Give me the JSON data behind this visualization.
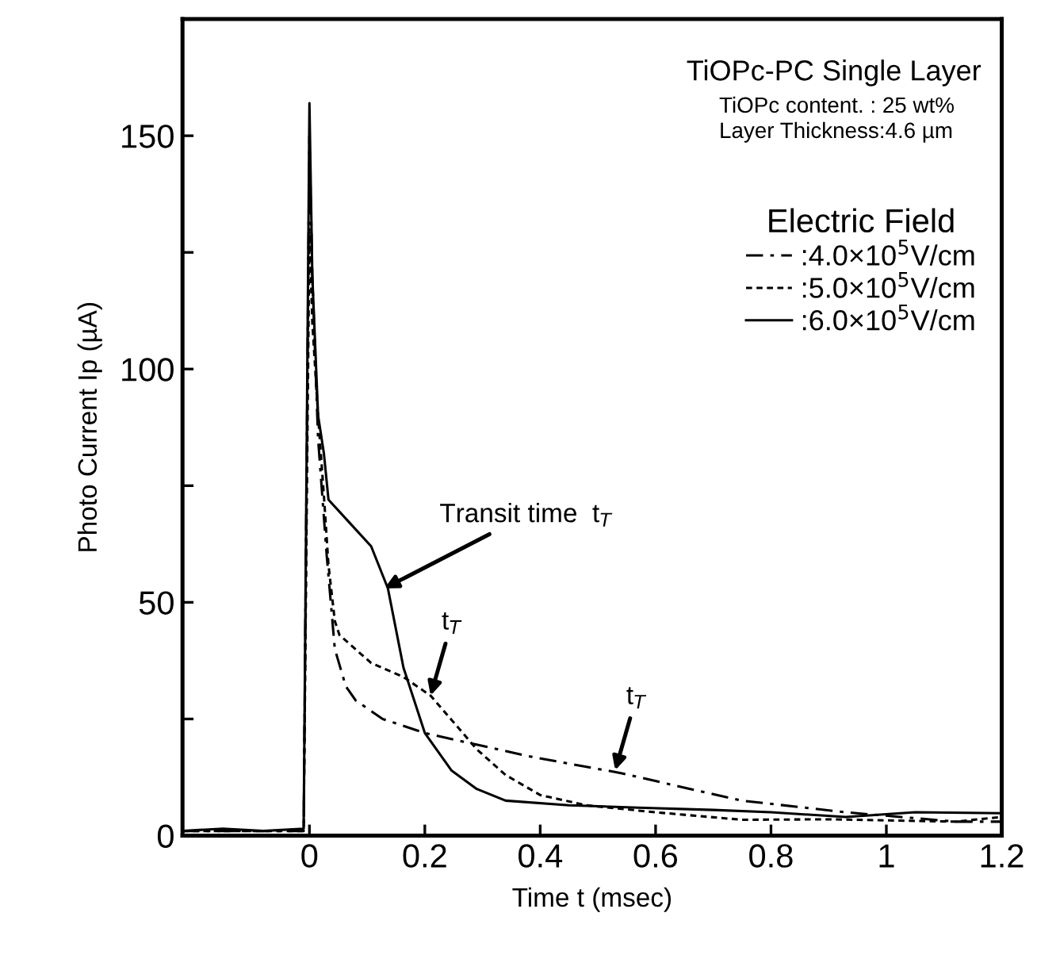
{
  "chart_data": {
    "type": "line",
    "title": "TiOPc-PC Single Layer",
    "subtitle": "TiOPc content. : 25 wt%\nLayer Thickness:4.6 µm",
    "xlabel": "Time t (msec)",
    "ylabel": "Photo Current Ip (µA)",
    "legend_title": "Electric Field",
    "legend": "top right",
    "grid": false,
    "marker": "none",
    "xlim": [
      -0.22,
      1.2
    ],
    "ylim": [
      0,
      175
    ],
    "xticks": [
      0,
      0.2,
      0.4,
      0.6,
      0.8,
      1,
      1.2
    ],
    "yticks": [
      0,
      {
        "value": 25,
        "label": null
      },
      50,
      {
        "value": 75,
        "label": null
      },
      100,
      {
        "value": 125,
        "label": null
      },
      150
    ],
    "annotations": [
      {
        "text": "Transit time  t$_{T}$",
        "x": 0.13,
        "y": 53
      },
      {
        "text": "t$_{T}$",
        "x": 0.21,
        "y": 30
      },
      {
        "text": "t$_{T}$",
        "x": 0.53,
        "y": 14
      }
    ],
    "series": [
      {
        "name": ":4.0×10$^{5}$V/cm",
        "color": "#000000",
        "line_style": "dashed",
        "x": [
          -0.22,
          -0.15,
          -0.08,
          -0.01,
          0,
          0.005,
          0.015,
          0.03,
          0.044,
          0.063,
          0.08,
          0.127,
          0.2,
          0.29,
          0.38,
          0.54,
          0.66,
          0.75,
          0.93,
          1.12,
          1.2
        ],
        "values": [
          1,
          1,
          1,
          1,
          150,
          120,
          85,
          60,
          40,
          32,
          29,
          25,
          22,
          19.5,
          17,
          13.4,
          10,
          7.5,
          5,
          3,
          3
        ]
      },
      {
        "name": ":5.0×10$^{5}$V/cm",
        "color": "#000000",
        "line_style": "dotted",
        "x": [
          -0.22,
          -0.01,
          0,
          0.005,
          0.015,
          0.025,
          0.033,
          0.044,
          0.052,
          0.107,
          0.163,
          0.21,
          0.245,
          0.29,
          0.34,
          0.4,
          0.48,
          0.6,
          0.75,
          0.9,
          1.12,
          1.2
        ],
        "values": [
          1,
          1,
          130,
          110,
          90,
          73,
          58,
          46,
          43,
          37,
          34,
          30,
          25,
          18.5,
          13,
          8.7,
          6.5,
          5,
          3.4,
          3.5,
          3,
          4
        ]
      },
      {
        "name": ":6.0×10$^{5}$V/cm",
        "color": "#000000",
        "line_style": "solid",
        "x": [
          -0.22,
          -0.15,
          -0.08,
          -0.01,
          0,
          0.005,
          0.015,
          0.025,
          0.033,
          0.07,
          0.107,
          0.136,
          0.163,
          0.2,
          0.246,
          0.29,
          0.34,
          0.45,
          0.57,
          0.7,
          0.8,
          0.93,
          1.05,
          1.2
        ],
        "values": [
          1,
          1.5,
          1,
          1.5,
          157,
          120,
          90,
          82,
          72,
          67,
          62,
          53,
          36,
          22,
          14,
          10,
          7.5,
          6.5,
          6,
          5.5,
          5,
          4,
          5,
          4.8
        ]
      }
    ]
  }
}
